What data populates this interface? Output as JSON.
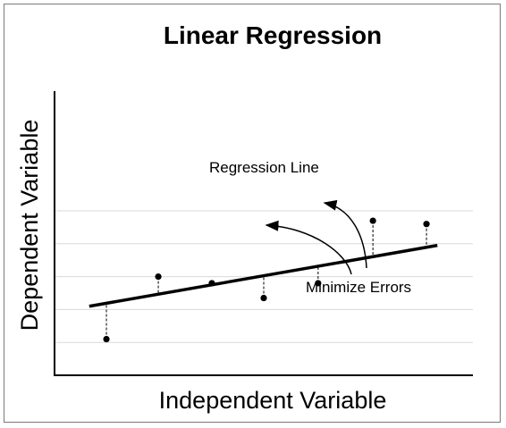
{
  "chart_data": {
    "type": "scatter",
    "title": "Linear Regression",
    "xlabel": "Independent Variable",
    "ylabel": "Dependent Variable",
    "xlim": [
      0,
      10
    ],
    "ylim": [
      0,
      10
    ],
    "grid": true,
    "gridlines_y": [
      1,
      2,
      3,
      4,
      5
    ],
    "points": [
      {
        "x": 1.24,
        "y": 1.1
      },
      {
        "x": 2.48,
        "y": 3.0
      },
      {
        "x": 3.76,
        "y": 2.8
      },
      {
        "x": 5.0,
        "y": 2.35
      },
      {
        "x": 6.3,
        "y": 2.8
      },
      {
        "x": 7.61,
        "y": 4.7
      },
      {
        "x": 8.89,
        "y": 4.6
      }
    ],
    "regression_line": {
      "x": [
        0.83,
        9.15
      ],
      "y": [
        2.1,
        3.95
      ]
    },
    "error_lines": true,
    "annotations": [
      {
        "text": "Regression Line"
      },
      {
        "text": "Minimize Errors"
      }
    ],
    "colors": {
      "axis": "#000000",
      "grid": "#d9d9d9",
      "frame": "#7a7a7a",
      "marks": "#000000"
    }
  }
}
